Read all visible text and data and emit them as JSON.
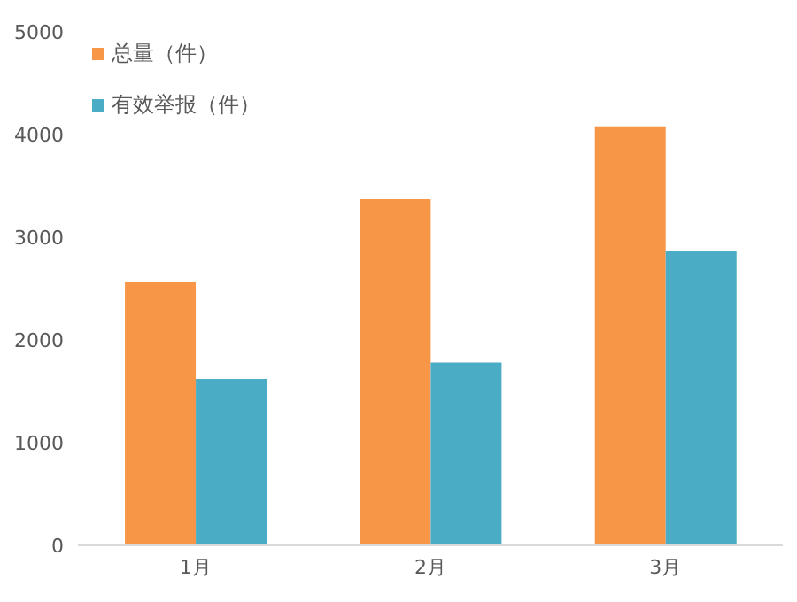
{
  "chart_data": {
    "type": "bar",
    "categories": [
      "1月",
      "2月",
      "3月"
    ],
    "series": [
      {
        "name": "总量（件）",
        "color": "#f79646",
        "values": [
          2560,
          3370,
          4080
        ]
      },
      {
        "name": "有效举报（件）",
        "color": "#4bacc6",
        "values": [
          1620,
          1780,
          2870
        ]
      }
    ],
    "ylim": [
      0,
      5000
    ],
    "yticks": [
      0,
      1000,
      2000,
      3000,
      4000,
      5000
    ],
    "grid": false,
    "legend": "top left"
  }
}
